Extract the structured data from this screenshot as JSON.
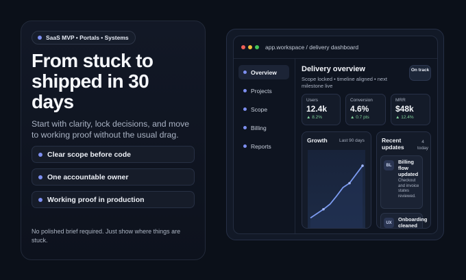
{
  "hero": {
    "tag": "SaaS MVP • Portals • Systems",
    "headline": "From stuck to shipped in 30 days",
    "lead": "Start with clarity, lock decisions, and move to working proof without the usual drag.",
    "features": [
      "Clear scope before code",
      "One accountable owner",
      "Working proof in production"
    ],
    "note": "No polished brief required. Just show where things are stuck."
  },
  "dashboard": {
    "address": "app.workspace / delivery dashboard",
    "nav": [
      "Overview",
      "Projects",
      "Scope",
      "Billing",
      "Reports"
    ],
    "active_nav": "Overview",
    "title": "Delivery overview",
    "subtitle": "Scope locked • timeline aligned • next milestone live",
    "status_badge": "On track",
    "stats": [
      {
        "label": "Users",
        "value": "12.4k",
        "delta": "▲ 8.2%"
      },
      {
        "label": "Conversion",
        "value": "4.6%",
        "delta": "▲ 0.7 pts"
      },
      {
        "label": "MRR",
        "value": "$48k",
        "delta": "▲ 12.4%"
      }
    ],
    "growth": {
      "title": "Growth",
      "range": "Last 90 days"
    },
    "updates": {
      "title": "Recent updates",
      "count": "4 today",
      "items": [
        {
          "icon": "BL",
          "title": "Billing flow updated",
          "desc": "Checkout and invoice states reviewed."
        },
        {
          "icon": "UX",
          "title": "Onboarding cleaned up",
          "desc": ""
        }
      ]
    }
  },
  "colors": {
    "accent": "#7d8ff0",
    "positive": "#7fcf9a",
    "background": "#0b1019"
  },
  "chart_data": {
    "type": "line",
    "title": "Growth",
    "x": [
      0,
      1,
      2,
      3,
      4,
      5,
      6,
      7,
      8
    ],
    "values": [
      10,
      16,
      22,
      29,
      40,
      52,
      58,
      70,
      82
    ],
    "ylim": [
      0,
      100
    ]
  }
}
